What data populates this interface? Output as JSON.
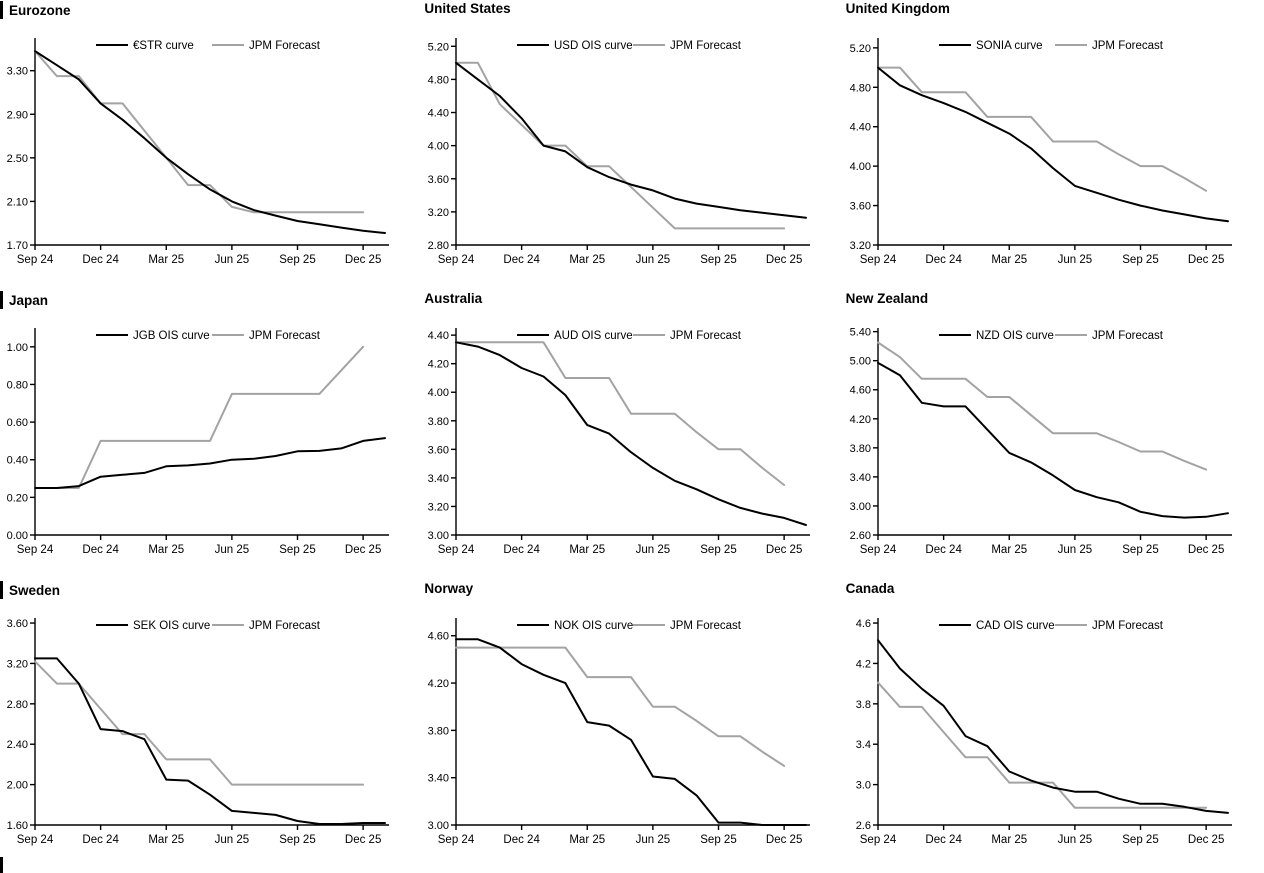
{
  "colors": {
    "ois": "#000000",
    "forecast": "#a3a3a3",
    "axis": "#000000",
    "background": "#ffffff"
  },
  "chart_data": [
    {
      "type": "line",
      "title": "Eurozone",
      "title_bar": true,
      "x_tick_labels": [
        "Sep 24",
        "Dec 24",
        "Mar 25",
        "Jun 25",
        "Sep 25",
        "Dec 25"
      ],
      "y_tick_labels": [
        "3.30",
        "2.90",
        "2.50",
        "2.10",
        "1.70"
      ],
      "ylim": [
        1.7,
        3.6
      ],
      "grid": false,
      "legend_position": "top",
      "series": [
        {
          "name": "€STR curve",
          "color_key": "ois",
          "values": [
            3.48,
            3.35,
            3.22,
            3.0,
            2.85,
            2.68,
            2.5,
            2.35,
            2.21,
            2.1,
            2.02,
            1.97,
            1.92,
            1.89,
            1.86,
            1.83,
            1.81
          ]
        },
        {
          "name": "JPM Forecast",
          "color_key": "forecast",
          "values": [
            3.48,
            3.25,
            3.25,
            3.0,
            3.0,
            2.75,
            2.5,
            2.25,
            2.25,
            2.05,
            2.0,
            2.0,
            2.0,
            2.0,
            2.0,
            2.0
          ]
        }
      ]
    },
    {
      "type": "line",
      "title": "United States",
      "title_bar": false,
      "x_tick_labels": [
        "Sep 24",
        "Dec 24",
        "Mar 25",
        "Jun 25",
        "Sep 25",
        "Dec 25"
      ],
      "y_tick_labels": [
        "5.20",
        "4.80",
        "4.40",
        "4.00",
        "3.60",
        "3.20",
        "2.80"
      ],
      "ylim": [
        2.8,
        5.3
      ],
      "grid": false,
      "legend_position": "top",
      "series": [
        {
          "name": "USD OIS curve",
          "color_key": "ois",
          "values": [
            5.0,
            4.8,
            4.6,
            4.33,
            4.0,
            3.93,
            3.74,
            3.62,
            3.53,
            3.46,
            3.36,
            3.3,
            3.26,
            3.22,
            3.19,
            3.16,
            3.13
          ]
        },
        {
          "name": "JPM Forecast",
          "color_key": "forecast",
          "values": [
            5.0,
            5.0,
            4.5,
            4.25,
            4.0,
            4.0,
            3.75,
            3.75,
            3.5,
            3.25,
            3.0,
            3.0,
            3.0,
            3.0,
            3.0,
            3.0
          ]
        }
      ]
    },
    {
      "type": "line",
      "title": "United Kingdom",
      "title_bar": false,
      "x_tick_labels": [
        "Sep 24",
        "Dec 24",
        "Mar 25",
        "Jun 25",
        "Sep 25",
        "Dec 25"
      ],
      "y_tick_labels": [
        "5.20",
        "4.80",
        "4.40",
        "4.00",
        "3.60",
        "3.20"
      ],
      "ylim": [
        3.2,
        5.3
      ],
      "grid": false,
      "legend_position": "top",
      "series": [
        {
          "name": "SONIA curve",
          "color_key": "ois",
          "values": [
            5.0,
            4.82,
            4.72,
            4.64,
            4.55,
            4.44,
            4.33,
            4.18,
            3.98,
            3.8,
            3.73,
            3.66,
            3.6,
            3.55,
            3.51,
            3.47,
            3.44
          ]
        },
        {
          "name": "JPM Forecast",
          "color_key": "forecast",
          "values": [
            5.0,
            5.0,
            4.75,
            4.75,
            4.75,
            4.5,
            4.5,
            4.5,
            4.25,
            4.25,
            4.25,
            4.12,
            4.0,
            4.0,
            3.88,
            3.75
          ]
        }
      ]
    },
    {
      "type": "line",
      "title": "Japan",
      "title_bar": true,
      "x_tick_labels": [
        "Sep 24",
        "Dec 24",
        "Mar 25",
        "Jun 25",
        "Sep 25",
        "Dec 25"
      ],
      "y_tick_labels": [
        "1.00",
        "0.80",
        "0.60",
        "0.40",
        "0.20",
        "0.00"
      ],
      "ylim": [
        0.0,
        1.1
      ],
      "grid": false,
      "legend_position": "top",
      "series": [
        {
          "name": "JGB OIS curve",
          "color_key": "ois",
          "values": [
            0.25,
            0.25,
            0.26,
            0.31,
            0.32,
            0.33,
            0.365,
            0.37,
            0.38,
            0.4,
            0.405,
            0.42,
            0.445,
            0.447,
            0.46,
            0.5,
            0.515
          ]
        },
        {
          "name": "JPM Forecast",
          "color_key": "forecast",
          "values": [
            0.25,
            0.25,
            0.25,
            0.5,
            0.5,
            0.5,
            0.5,
            0.5,
            0.5,
            0.75,
            0.75,
            0.75,
            0.75,
            0.75,
            0.875,
            1.0
          ]
        }
      ]
    },
    {
      "type": "line",
      "title": "Australia",
      "title_bar": false,
      "x_tick_labels": [
        "Sep 24",
        "Dec 24",
        "Mar 25",
        "Jun 25",
        "Sep 25",
        "Dec 25"
      ],
      "y_tick_labels": [
        "4.40",
        "4.20",
        "4.00",
        "3.80",
        "3.60",
        "3.40",
        "3.20",
        "3.00"
      ],
      "ylim": [
        3.0,
        4.45
      ],
      "grid": false,
      "legend_position": "top",
      "series": [
        {
          "name": "AUD OIS curve",
          "color_key": "ois",
          "values": [
            4.35,
            4.32,
            4.26,
            4.17,
            4.11,
            3.98,
            3.77,
            3.71,
            3.58,
            3.47,
            3.38,
            3.32,
            3.25,
            3.19,
            3.15,
            3.12,
            3.07
          ]
        },
        {
          "name": "JPM Forecast",
          "color_key": "forecast",
          "values": [
            4.35,
            4.35,
            4.35,
            4.35,
            4.35,
            4.1,
            4.1,
            4.1,
            3.85,
            3.85,
            3.85,
            3.72,
            3.6,
            3.6,
            3.47,
            3.35
          ]
        }
      ]
    },
    {
      "type": "line",
      "title": "New Zealand",
      "title_bar": false,
      "x_tick_labels": [
        "Sep 24",
        "Dec 24",
        "Mar 25",
        "Jun 25",
        "Sep 25",
        "Dec 25"
      ],
      "y_tick_labels": [
        "5.40",
        "5.00",
        "4.60",
        "4.20",
        "3.80",
        "3.40",
        "3.00",
        "2.60"
      ],
      "ylim": [
        2.6,
        5.45
      ],
      "grid": false,
      "legend_position": "top",
      "series": [
        {
          "name": "NZD OIS curve",
          "color_key": "ois",
          "values": [
            4.97,
            4.8,
            4.42,
            4.37,
            4.37,
            4.05,
            3.73,
            3.6,
            3.42,
            3.22,
            3.12,
            3.05,
            2.92,
            2.86,
            2.84,
            2.85,
            2.9
          ]
        },
        {
          "name": "JPM Forecast",
          "color_key": "forecast",
          "values": [
            5.25,
            5.05,
            4.75,
            4.75,
            4.75,
            4.5,
            4.5,
            4.25,
            4.0,
            4.0,
            4.0,
            3.88,
            3.75,
            3.75,
            3.62,
            3.5
          ]
        }
      ]
    },
    {
      "type": "line",
      "title": "Sweden",
      "title_bar": true,
      "x_tick_labels": [
        "Sep 24",
        "Dec 24",
        "Mar 25",
        "Jun 25",
        "Sep 25",
        "Dec 25"
      ],
      "y_tick_labels": [
        "3.60",
        "3.20",
        "2.80",
        "2.40",
        "2.00",
        "1.60"
      ],
      "ylim": [
        1.6,
        3.65
      ],
      "grid": false,
      "legend_position": "top",
      "series": [
        {
          "name": "SEK OIS curve",
          "color_key": "ois",
          "values": [
            3.25,
            3.25,
            3.0,
            2.55,
            2.53,
            2.45,
            2.05,
            2.04,
            1.9,
            1.74,
            1.72,
            1.7,
            1.64,
            1.61,
            1.61,
            1.62,
            1.62
          ]
        },
        {
          "name": "JPM Forecast",
          "color_key": "forecast",
          "values": [
            3.22,
            3.0,
            3.0,
            2.75,
            2.5,
            2.5,
            2.25,
            2.25,
            2.25,
            2.0,
            2.0,
            2.0,
            2.0,
            2.0,
            2.0,
            2.0
          ]
        }
      ]
    },
    {
      "type": "line",
      "title": "Norway",
      "title_bar": false,
      "x_tick_labels": [
        "Sep 24",
        "Dec 24",
        "Mar 25",
        "Jun 25",
        "Sep 25",
        "Dec 25"
      ],
      "y_tick_labels": [
        "4.60",
        "4.20",
        "3.80",
        "3.40",
        "3.00"
      ],
      "ylim": [
        3.0,
        4.75
      ],
      "grid": false,
      "legend_position": "top",
      "series": [
        {
          "name": "NOK OIS curve",
          "color_key": "ois",
          "values": [
            4.57,
            4.57,
            4.5,
            4.36,
            4.27,
            4.2,
            3.87,
            3.84,
            3.72,
            3.41,
            3.39,
            3.25,
            3.02,
            3.02,
            2.99,
            2.98,
            2.98
          ]
        },
        {
          "name": "JPM Forecast",
          "color_key": "forecast",
          "values": [
            4.5,
            4.5,
            4.5,
            4.5,
            4.5,
            4.5,
            4.25,
            4.25,
            4.25,
            4.0,
            4.0,
            3.88,
            3.75,
            3.75,
            3.62,
            3.5
          ]
        }
      ]
    },
    {
      "type": "line",
      "title": "Canada",
      "title_bar": false,
      "x_tick_labels": [
        "Sep 24",
        "Dec 24",
        "Mar 25",
        "Jun 25",
        "Sep 25",
        "Dec 25"
      ],
      "y_tick_labels": [
        "4.6",
        "4.2",
        "3.8",
        "3.4",
        "3.0",
        "2.6"
      ],
      "ylim": [
        2.6,
        4.65
      ],
      "grid": false,
      "legend_position": "top",
      "series": [
        {
          "name": "CAD OIS curve",
          "color_key": "ois",
          "values": [
            4.43,
            4.15,
            3.95,
            3.78,
            3.48,
            3.38,
            3.13,
            3.04,
            2.97,
            2.93,
            2.93,
            2.86,
            2.81,
            2.81,
            2.78,
            2.74,
            2.72
          ]
        },
        {
          "name": "JPM Forecast",
          "color_key": "forecast",
          "values": [
            4.01,
            3.77,
            3.77,
            3.52,
            3.27,
            3.27,
            3.02,
            3.02,
            3.02,
            2.77,
            2.77,
            2.77,
            2.77,
            2.77,
            2.77,
            2.77
          ]
        }
      ]
    }
  ]
}
